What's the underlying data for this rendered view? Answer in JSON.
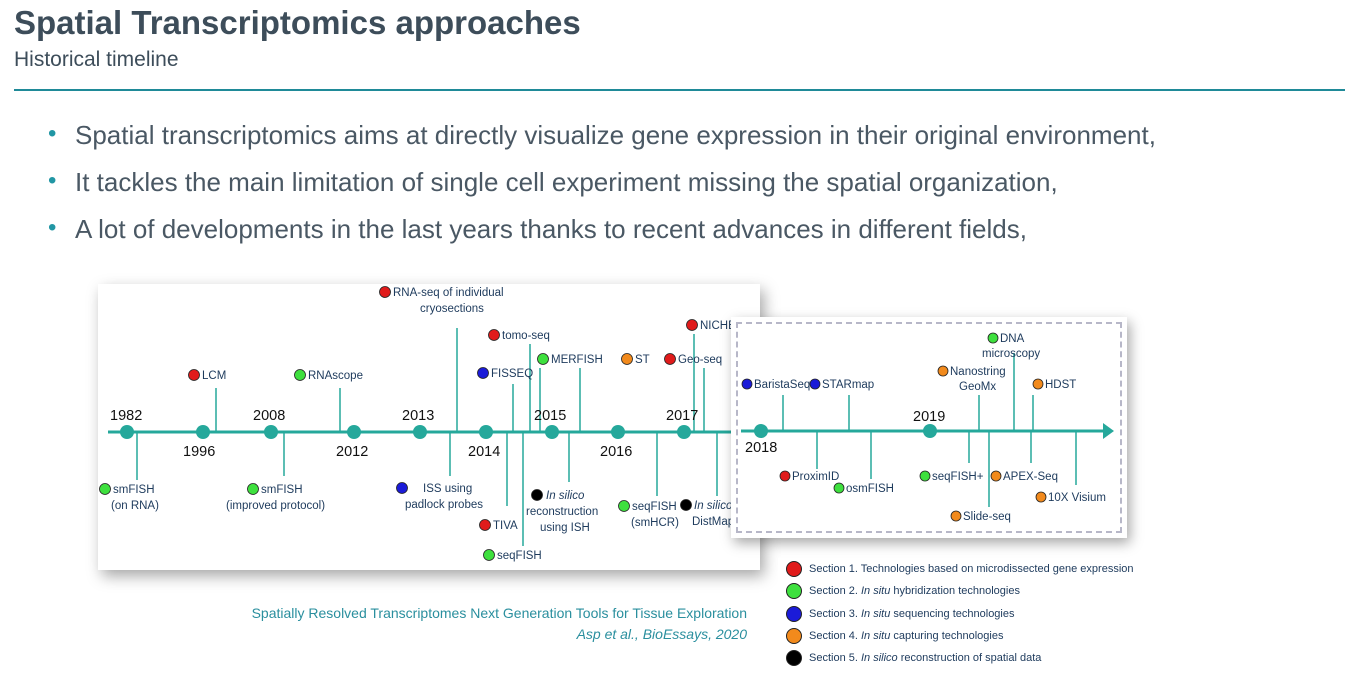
{
  "header": {
    "title": "Spatial Transcriptomics approaches",
    "subtitle": "Historical timeline"
  },
  "bullets": [
    "Spatial transcriptomics aims at directly visualize gene expression in their original environment,",
    "It tackles the main limitation of single cell experiment missing the spatial organization,",
    "A lot of developments in the last years thanks to recent advances in different fields,"
  ],
  "colors": {
    "accent": "#1f8a98",
    "timeline": "#25a89b",
    "section1": "#e01b1b",
    "section2": "#3ee03e",
    "section3": "#1b1bd8",
    "section4": "#f28a1c",
    "section5": "#000000"
  },
  "timeline_left": {
    "years": [
      "1982",
      "1996",
      "2008",
      "2012",
      "2013",
      "2014",
      "2015",
      "2016",
      "2017"
    ],
    "items": [
      {
        "section": 2,
        "lines": [
          "smFISH",
          "(on RNA)"
        ]
      },
      {
        "section": 1,
        "lines": [
          "LCM"
        ]
      },
      {
        "section": 2,
        "lines": [
          "smFISH",
          "(improved protocol)"
        ]
      },
      {
        "section": 2,
        "lines": [
          "RNAscope"
        ]
      },
      {
        "section": 1,
        "lines": [
          "RNA-seq of individual",
          "cryosections"
        ]
      },
      {
        "section": 3,
        "lines": [
          "ISS using",
          "padlock probes"
        ]
      },
      {
        "section": 3,
        "lines": [
          "FISSEQ"
        ]
      },
      {
        "section": 1,
        "lines": [
          "tomo-seq"
        ]
      },
      {
        "section": 1,
        "lines": [
          "TIVA"
        ]
      },
      {
        "section": 2,
        "lines": [
          "seqFISH"
        ]
      },
      {
        "section": 2,
        "lines": [
          "MERFISH"
        ]
      },
      {
        "section": 5,
        "lines": [
          "In silico",
          "reconstruction",
          "using ISH"
        ]
      },
      {
        "section": 4,
        "lines": [
          "ST"
        ]
      },
      {
        "section": 2,
        "lines": [
          "seqFISH",
          "(smHCR)"
        ]
      },
      {
        "section": 1,
        "lines": [
          "Geo-seq"
        ]
      },
      {
        "section": 1,
        "lines": [
          "NICHE"
        ]
      },
      {
        "section": 5,
        "lines": [
          "In silico",
          "DistMap"
        ]
      }
    ]
  },
  "timeline_right": {
    "years": [
      "2018",
      "2019"
    ],
    "items": [
      {
        "section": 3,
        "lines": [
          "BaristaSeq"
        ]
      },
      {
        "section": 3,
        "lines": [
          "STARmap"
        ]
      },
      {
        "section": 1,
        "lines": [
          "ProximID"
        ]
      },
      {
        "section": 2,
        "lines": [
          "osmFISH"
        ]
      },
      {
        "section": 2,
        "lines": [
          "DNA",
          "microscopy"
        ]
      },
      {
        "section": 4,
        "lines": [
          "Nanostring",
          "GeoMx"
        ]
      },
      {
        "section": 2,
        "lines": [
          "seqFISH+"
        ]
      },
      {
        "section": 4,
        "lines": [
          "Slide-seq"
        ]
      },
      {
        "section": 4,
        "lines": [
          "HDST"
        ]
      },
      {
        "section": 4,
        "lines": [
          "APEX-Seq"
        ]
      },
      {
        "section": 4,
        "lines": [
          "10X Visium"
        ]
      }
    ]
  },
  "reference": {
    "line1": "Spatially Resolved Transcriptomes Next Generation Tools for Tissue Exploration",
    "line2": "Asp et al., BioEssays, 2020"
  },
  "legend": [
    {
      "section": 1,
      "prefix": "Section 1. ",
      "italic": "",
      "rest": "Technologies based on microdissected gene expression"
    },
    {
      "section": 2,
      "prefix": "Section 2. ",
      "italic": "In situ",
      "rest": " hybridization technologies"
    },
    {
      "section": 3,
      "prefix": "Section 3. ",
      "italic": "In situ",
      "rest": " sequencing technologies"
    },
    {
      "section": 4,
      "prefix": "Section 4. ",
      "italic": "In situ",
      "rest": " capturing technologies"
    },
    {
      "section": 5,
      "prefix": "Section 5. ",
      "italic": "In silico",
      "rest": " reconstruction of spatial data"
    }
  ]
}
